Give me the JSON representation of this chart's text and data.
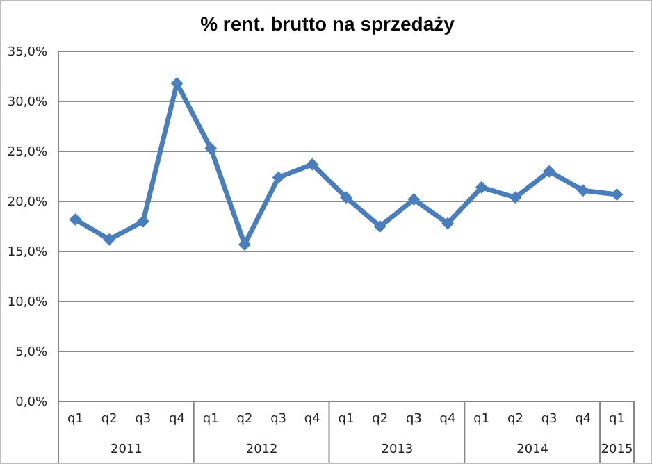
{
  "chart_data": {
    "type": "line",
    "title": "% rent. brutto na sprzedaży",
    "categories": [
      "q1",
      "q2",
      "q3",
      "q4",
      "q1",
      "q2",
      "q3",
      "q4",
      "q1",
      "q2",
      "q3",
      "q4",
      "q1",
      "q2",
      "q3",
      "q4",
      "q1"
    ],
    "annotations": [
      "2011",
      "2012",
      "2013",
      "2014",
      "2015"
    ],
    "series": [
      {
        "color": "#4a7ebb",
        "values": [
          18.2,
          16.2,
          18.0,
          31.8,
          25.3,
          15.7,
          22.4,
          23.7,
          20.4,
          17.5,
          20.2,
          17.8,
          21.4,
          20.4,
          23.0,
          21.1,
          20.7
        ]
      }
    ],
    "ylim": [
      0,
      35
    ],
    "yticks": [
      {
        "value": 0,
        "label": "0,0%"
      },
      {
        "value": 5,
        "label": "5,0%"
      },
      {
        "value": 10,
        "label": "10,0%"
      },
      {
        "value": 15,
        "label": "15,0%"
      },
      {
        "value": 20,
        "label": "20,0%"
      },
      {
        "value": 25,
        "label": "25,0%"
      },
      {
        "value": 30,
        "label": "30,0%"
      },
      {
        "value": 35,
        "label": "35,0%"
      }
    ],
    "grid": "y",
    "marker": "diamond",
    "line_style": "solid"
  }
}
